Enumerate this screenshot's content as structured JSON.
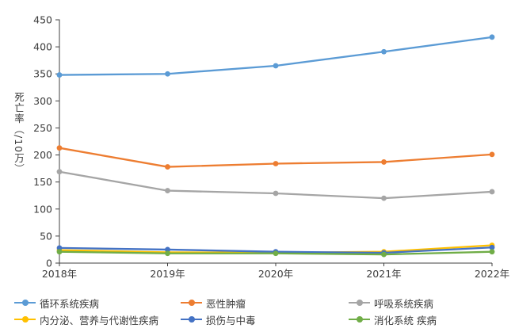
{
  "chart_data": {
    "type": "line",
    "categories": [
      "2018年",
      "2019年",
      "2020年",
      "2021年",
      "2022年"
    ],
    "series": [
      {
        "name": "循环系统疾病",
        "color": "#5B9BD5",
        "values": [
          348,
          350,
          365,
          391,
          418
        ]
      },
      {
        "name": "恶性肿瘤",
        "color": "#ED7D31",
        "values": [
          213,
          178,
          184,
          187,
          201
        ]
      },
      {
        "name": "呼吸系统疾病",
        "color": "#A5A5A5",
        "values": [
          169,
          134,
          129,
          120,
          132
        ]
      },
      {
        "name": "内分泌、营养与代谢性疾病",
        "color": "#FFC000",
        "values": [
          24,
          20,
          19,
          21,
          33
        ]
      },
      {
        "name": "损伤与中毒",
        "color": "#4472C4",
        "values": [
          28,
          25,
          21,
          19,
          29
        ]
      },
      {
        "name": "消化系统 疾病",
        "color": "#70AD47",
        "values": [
          21,
          18,
          18,
          16,
          21
        ]
      }
    ],
    "title": "",
    "xlabel": "",
    "ylabel": "死亡率（/10万）",
    "ylim": [
      0,
      450
    ],
    "ytick_step": 50,
    "grid": false,
    "legend_position": "bottom",
    "marker": "circle"
  },
  "colors": {
    "axis": "#404040",
    "text": "#3b3b3b",
    "background": "#FFFFFF"
  }
}
